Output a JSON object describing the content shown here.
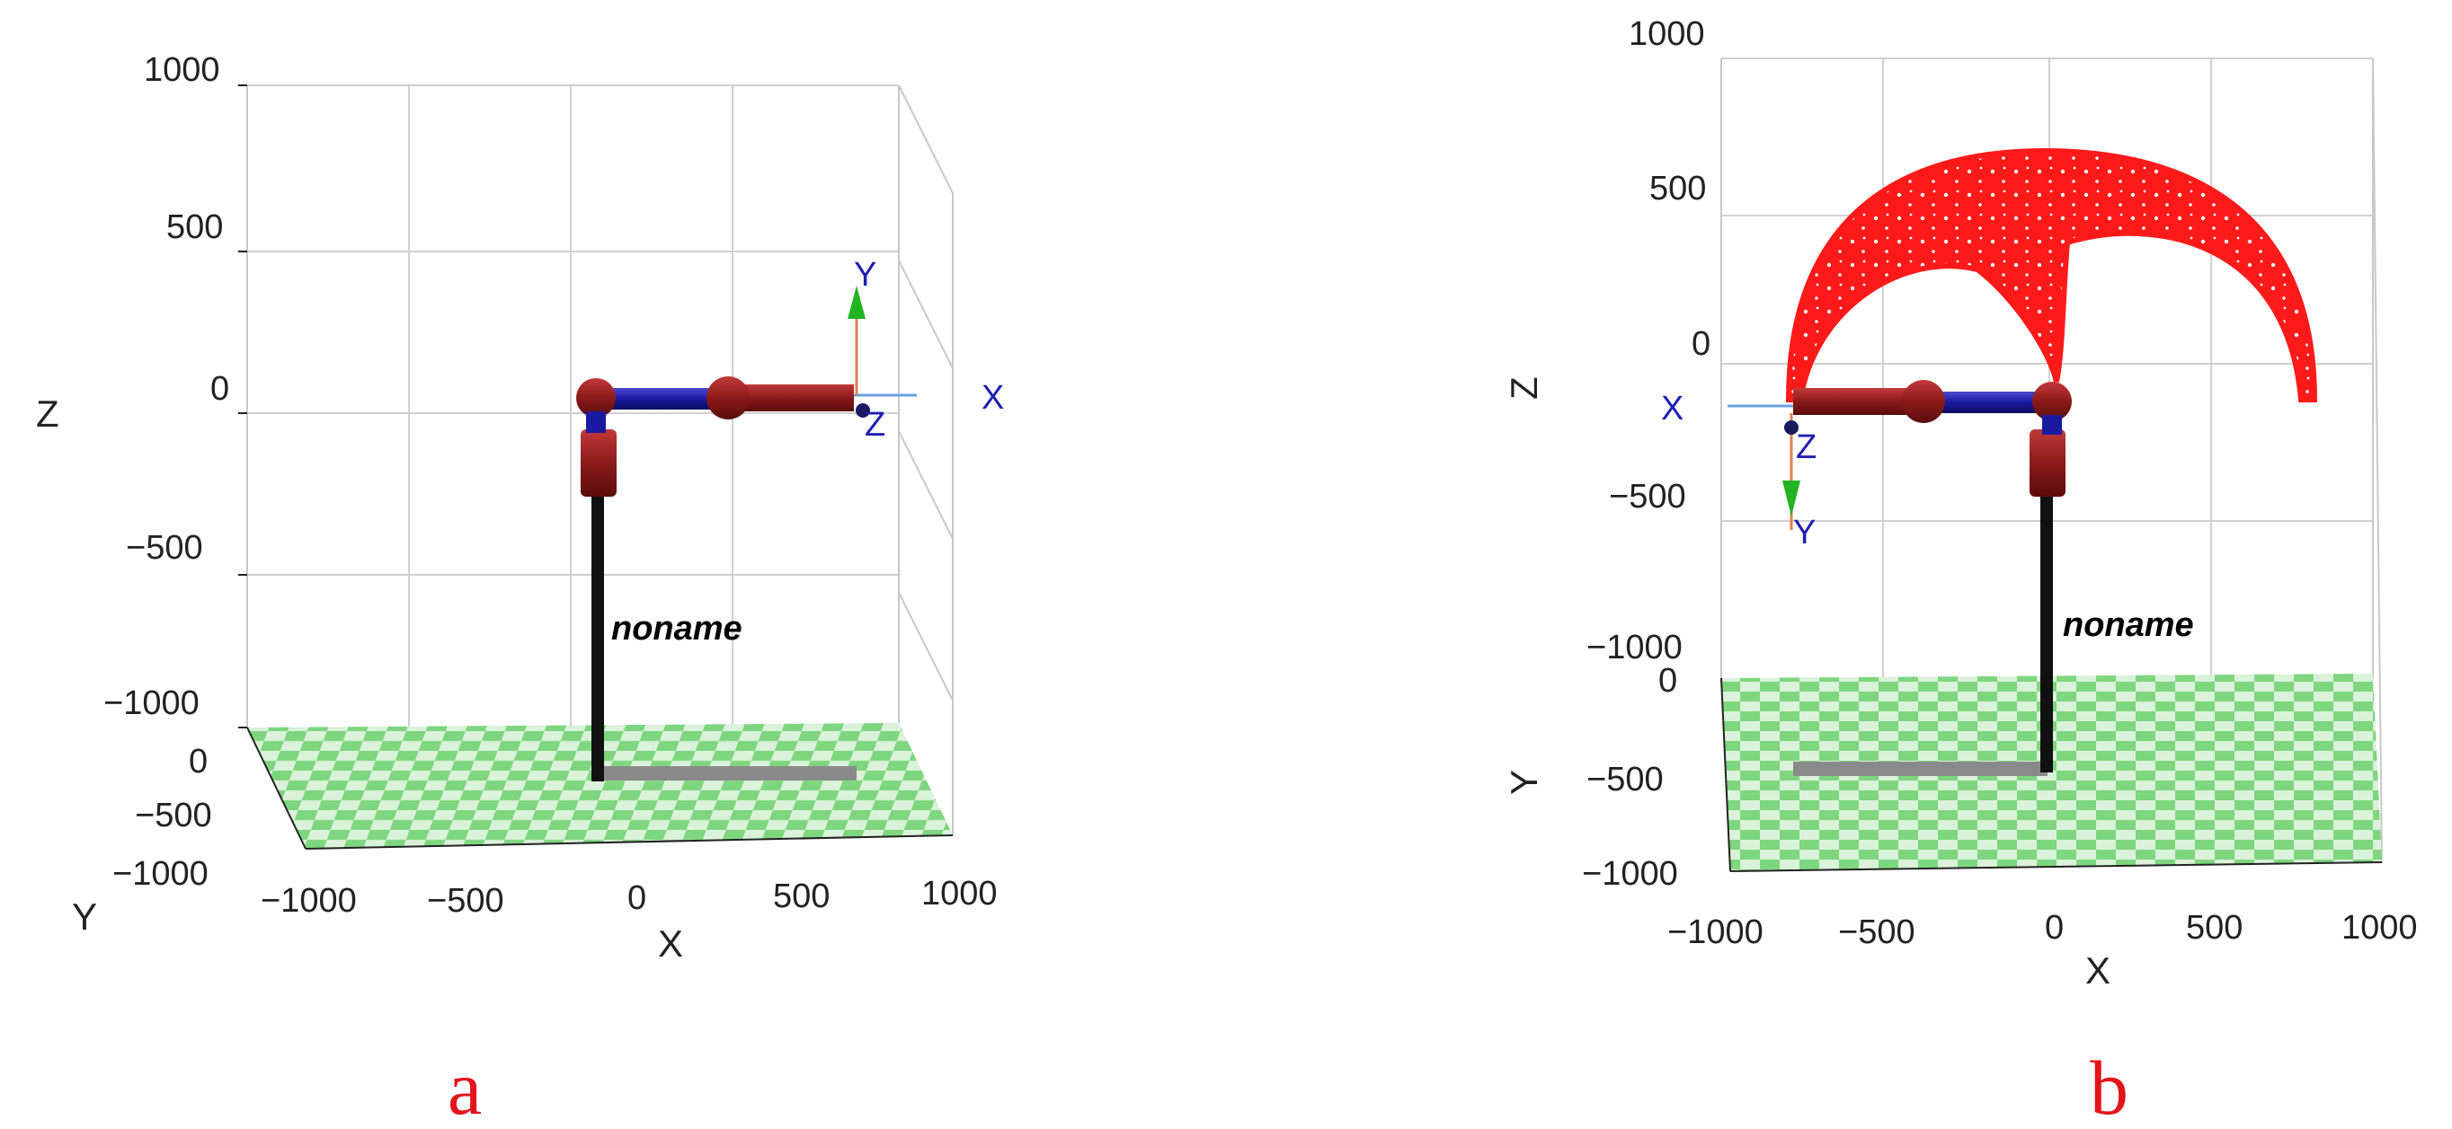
{
  "figure_panels": [
    {
      "id": "a",
      "panel_label": "a",
      "robot_name": "noname",
      "axis_labels": {
        "x": "X",
        "y": "Y",
        "z": "Z"
      },
      "x_ticks": [
        "−1000",
        "−500",
        "0",
        "500",
        "1000"
      ],
      "y_ticks": [
        "0",
        "−500",
        "−1000"
      ],
      "z_ticks": [
        "1000",
        "500",
        "0",
        "−500",
        "−1000"
      ],
      "tool_frame": {
        "x": "X",
        "y": "Y",
        "z": "Z"
      }
    },
    {
      "id": "b",
      "panel_label": "b",
      "robot_name": "noname",
      "axis_labels": {
        "x": "X",
        "y": "Y",
        "z": "Z"
      },
      "x_ticks": [
        "−1000",
        "−500",
        "0",
        "500",
        "1000"
      ],
      "y_ticks": [
        "0",
        "−500",
        "−1000"
      ],
      "z_ticks": [
        "1000",
        "500",
        "0",
        "−500",
        "−1000"
      ],
      "tool_frame": {
        "x": "X",
        "y": "Y",
        "z": "Z"
      },
      "workspace_color": "#ff1a1a"
    }
  ],
  "colors": {
    "link_red": "#8b1a1a",
    "link_blue": "#1a1aa0",
    "base_black": "#111111",
    "floor_green": "#7ed67e",
    "floor_light": "#d9f2d9",
    "arrow_green": "#22b422",
    "frame_blue": "#1f1fb4",
    "panel_label_red": "#e3141b"
  }
}
